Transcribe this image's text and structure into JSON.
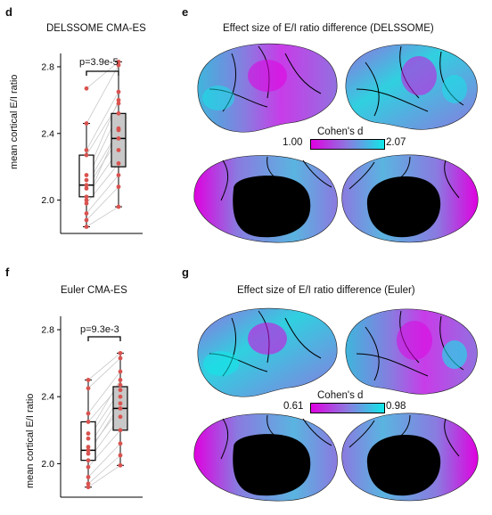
{
  "panels": {
    "d": {
      "letter": "d",
      "title": "DELSSOME CMA-ES",
      "ylabel": "mean cortical E/I ratio",
      "yticks": [
        "2.0",
        "2.4",
        "2.8"
      ],
      "pvalue": "p=3.9e-5"
    },
    "e": {
      "letter": "e",
      "title": "Effect size of E/I ratio difference (DELSSOME)",
      "colorbar_title": "Cohen's d",
      "colorbar_min": "1.00",
      "colorbar_max": "2.07"
    },
    "f": {
      "letter": "f",
      "title": "Euler CMA-ES",
      "ylabel": "mean cortical E/I ratio",
      "yticks": [
        "2.0",
        "2.4",
        "2.8"
      ],
      "pvalue": "p=9.3e-3"
    },
    "g": {
      "letter": "g",
      "title": "Effect size of E/I ratio difference (Euler)",
      "colorbar_title": "Cohen's d",
      "colorbar_min": "0.61",
      "colorbar_max": "0.98"
    }
  },
  "colors": {
    "colormap_low": "#e000e0",
    "colormap_mid": "#8a7ae0",
    "colormap_high": "#10e8e8",
    "box_right": "#c8c8c8",
    "point": "#d9534f",
    "mask": "#000000"
  },
  "chart_data": [
    {
      "type": "box",
      "panel": "d",
      "ylim": [
        1.8,
        2.88
      ],
      "categories": [
        "",
        ""
      ],
      "boxes": [
        {
          "q1": 2.02,
          "median": 2.09,
          "q3": 2.27,
          "whisker_low": 1.84,
          "whisker_high": 2.46
        },
        {
          "q1": 2.2,
          "median": 2.37,
          "q3": 2.52,
          "whisker_low": 1.96,
          "whisker_high": 2.83
        }
      ],
      "pairs": [
        [
          2.67,
          2.83
        ],
        [
          2.46,
          2.81
        ],
        [
          2.3,
          2.65
        ],
        [
          2.27,
          2.58
        ],
        [
          2.12,
          2.52
        ],
        [
          2.09,
          2.42
        ],
        [
          2.07,
          2.37
        ],
        [
          2.02,
          2.3
        ],
        [
          1.98,
          2.22
        ],
        [
          1.92,
          2.15
        ],
        [
          1.88,
          2.08
        ],
        [
          1.84,
          1.96
        ],
        [
          2.0,
          2.43
        ],
        [
          2.15,
          2.6
        ]
      ]
    },
    {
      "type": "box",
      "panel": "f",
      "ylim": [
        1.8,
        2.88
      ],
      "categories": [
        "",
        ""
      ],
      "boxes": [
        {
          "q1": 2.02,
          "median": 2.08,
          "q3": 2.25,
          "whisker_low": 1.86,
          "whisker_high": 2.5
        },
        {
          "q1": 2.2,
          "median": 2.33,
          "q3": 2.46,
          "whisker_low": 1.99,
          "whisker_high": 2.66
        }
      ],
      "pairs": [
        [
          2.5,
          2.66
        ],
        [
          2.45,
          2.63
        ],
        [
          2.3,
          2.55
        ],
        [
          2.25,
          2.47
        ],
        [
          2.15,
          2.44
        ],
        [
          2.1,
          2.4
        ],
        [
          2.08,
          2.33
        ],
        [
          2.02,
          2.28
        ],
        [
          1.98,
          2.2
        ],
        [
          1.92,
          2.12
        ],
        [
          1.88,
          2.05
        ],
        [
          1.86,
          1.99
        ],
        [
          2.06,
          2.36
        ],
        [
          2.18,
          2.5
        ]
      ]
    }
  ]
}
